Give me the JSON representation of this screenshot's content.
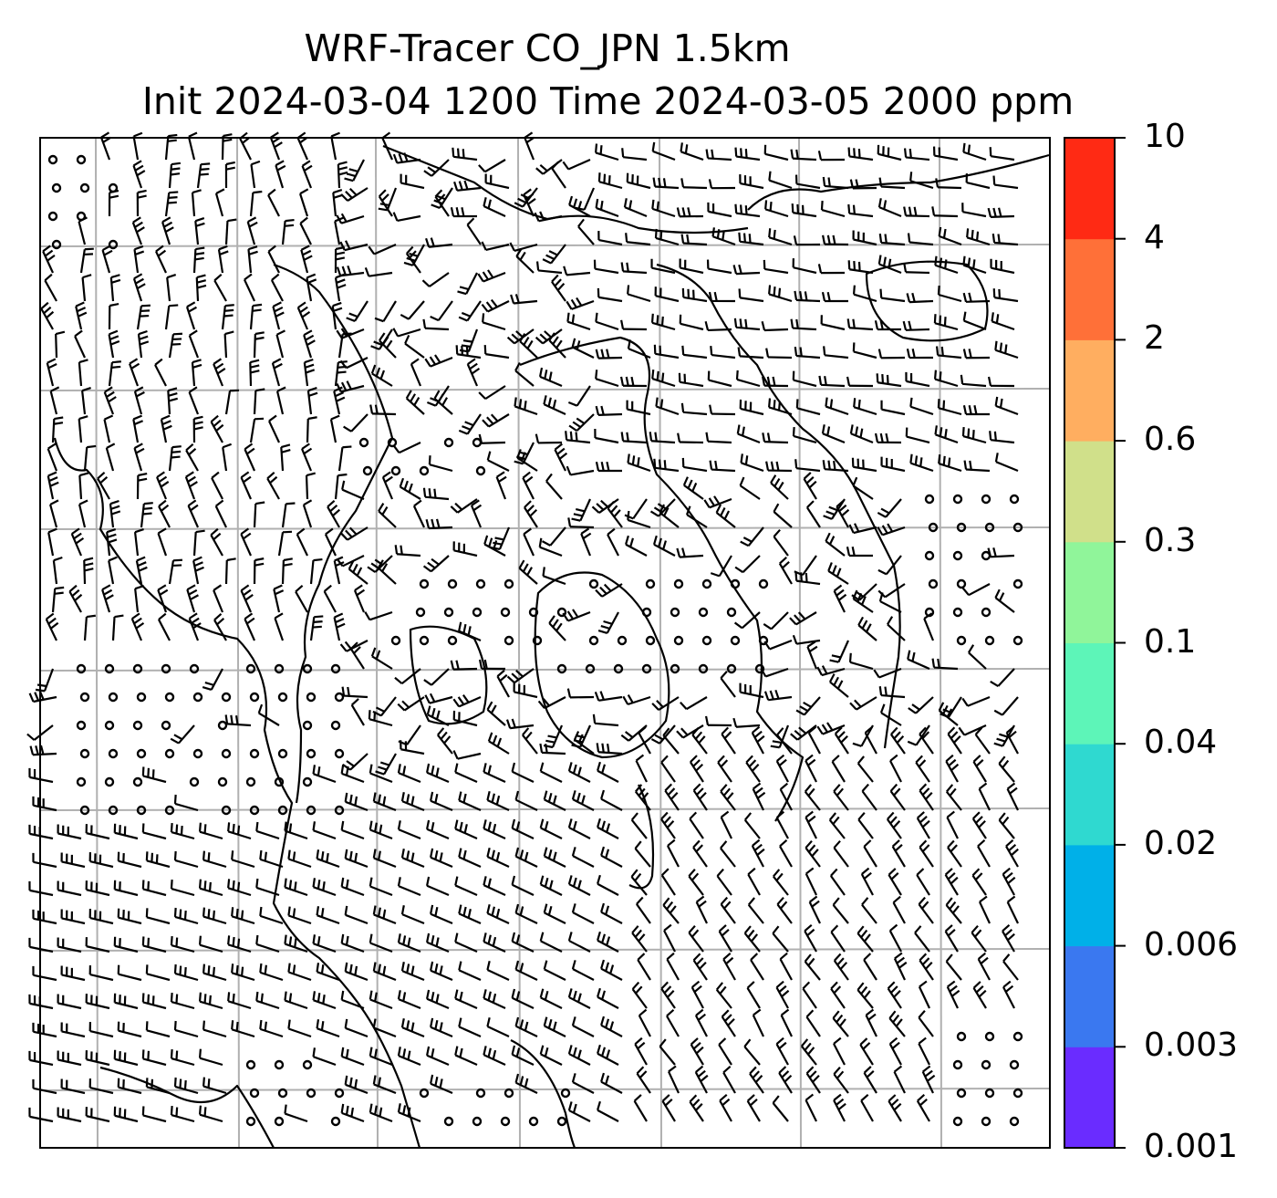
{
  "title": {
    "line1": "WRF-Tracer CO_JPN 1.5km",
    "line2": "Init 2024-03-04 1200 Time 2024-03-05 2000 ppm"
  },
  "colorbar": {
    "ticks": [
      "0.001",
      "0.003",
      "0.006",
      "0.02",
      "0.04",
      "0.1",
      "0.3",
      "0.6",
      "2",
      "4",
      "10"
    ],
    "colors": [
      "#6a2cff",
      "#3a78f0",
      "#00b0e8",
      "#2fd9d0",
      "#5df5b8",
      "#90f59a",
      "#d0e08a",
      "#ffae60",
      "#ff7038",
      "#ff2a14"
    ]
  },
  "map": {
    "frame_color": "#000000",
    "gridline_color": "#b0b0b0",
    "coastline_color": "#000000",
    "barb_color": "#000000",
    "grid_x_count": 7,
    "grid_y_count": 7
  }
}
